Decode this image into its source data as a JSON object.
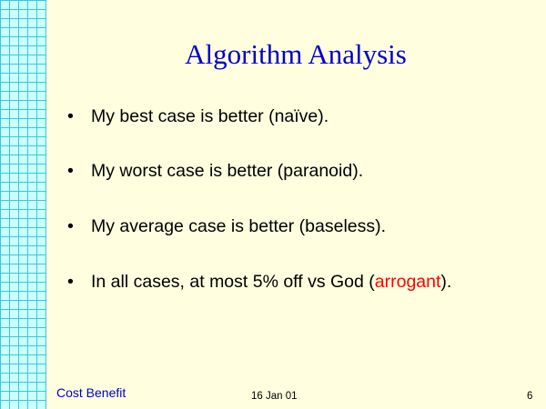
{
  "slide": {
    "title": "Algorithm Analysis",
    "bullets": [
      {
        "text": "My best case is better (naïve)."
      },
      {
        "text": "My worst case is better (paranoid)."
      },
      {
        "text": "My average case is better (baseless)."
      },
      {
        "text_before": "In all cases, at most 5% off vs God (",
        "highlight": "arrogant",
        "text_after": ")."
      }
    ],
    "bullet_glyph": "•",
    "footer": {
      "left": "Cost Benefit",
      "center": "16 Jan 01",
      "page_number": "6"
    },
    "colors": {
      "background": "#ffffe0",
      "grid_fill": "#ccffff",
      "grid_line": "#39c6e3",
      "title": "#0000cc",
      "highlight": "#ff0000",
      "footer_left": "#0000cc"
    }
  }
}
